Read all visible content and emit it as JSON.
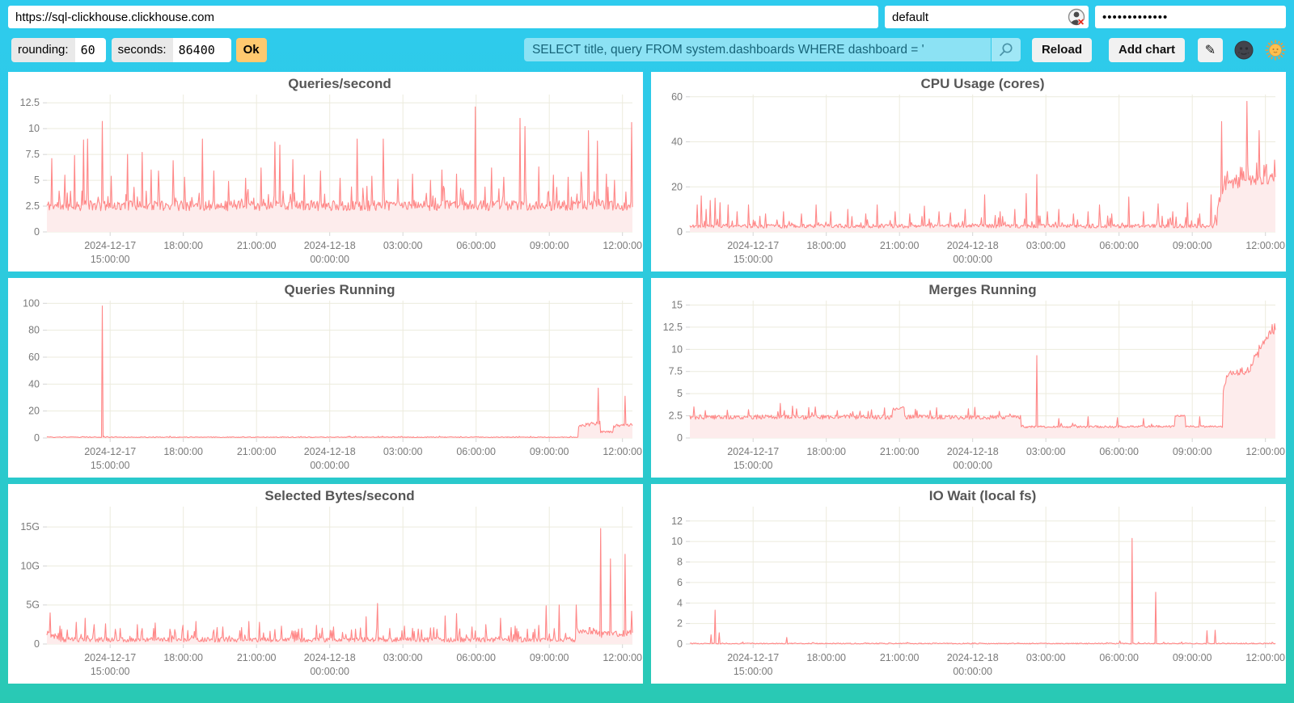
{
  "topbar": {
    "url": "https://sql-clickhouse.clickhouse.com",
    "user": "default",
    "password": "•••••••••••••",
    "rounding_label": "rounding:",
    "rounding_value": "60",
    "seconds_label": "seconds:",
    "seconds_value": "86400",
    "ok": "Ok",
    "query": "SELECT title, query FROM system.dashboards WHERE dashboard = '",
    "reload": "Reload",
    "add_chart": "Add chart",
    "edit": "✎"
  },
  "colors": {
    "background_top": "#2ECBEE",
    "background_bottom": "#29C9B4",
    "line": "#ff8888",
    "fill": "#fdecec",
    "grid": "#ecebdd",
    "axis_text": "#7a7a7a",
    "title_text": "#565656",
    "ok_button": "#FFC96F",
    "query_text": "#17657A"
  },
  "chart_data": {
    "type": "line",
    "x_range": [
      "2024-12-17 ~12:25",
      "2024-12-18 ~12:25"
    ],
    "x_ticks": [
      {
        "f": 0.108,
        "lines": [
          "2024-12-17",
          "15:00:00"
        ]
      },
      {
        "f": 0.233,
        "lines": [
          "18:00:00"
        ]
      },
      {
        "f": 0.358,
        "lines": [
          "21:00:00"
        ]
      },
      {
        "f": 0.483,
        "lines": [
          "2024-12-18",
          "00:00:00"
        ]
      },
      {
        "f": 0.608,
        "lines": [
          "03:00:00"
        ]
      },
      {
        "f": 0.733,
        "lines": [
          "06:00:00"
        ]
      },
      {
        "f": 0.858,
        "lines": [
          "09:00:00"
        ]
      },
      {
        "f": 0.983,
        "lines": [
          "12:00:00"
        ]
      }
    ],
    "charts": [
      {
        "id": "queries-per-second",
        "title": "Queries/second",
        "y_max": 13.3,
        "floor": 1.8,
        "seed": 11,
        "y_ticks": [
          [
            0,
            "0"
          ],
          [
            2.5,
            "2.5"
          ],
          [
            5,
            "5"
          ],
          [
            7.5,
            "7.5"
          ],
          [
            10,
            "10"
          ],
          [
            12.5,
            "12.5"
          ]
        ],
        "segments": [
          [
            0,
            1,
            2.55,
            2.55,
            0.5,
            0.1,
            1.9
          ]
        ],
        "peaks": [
          [
            0.008,
            7.1
          ],
          [
            0.03,
            5.5
          ],
          [
            0.047,
            7.4
          ],
          [
            0.062,
            8.9
          ],
          [
            0.07,
            9.0
          ],
          [
            0.094,
            10.7
          ],
          [
            0.11,
            5.4
          ],
          [
            0.137,
            7.5
          ],
          [
            0.163,
            7.7
          ],
          [
            0.178,
            6.0
          ],
          [
            0.19,
            5.9
          ],
          [
            0.215,
            6.9
          ],
          [
            0.235,
            5.3
          ],
          [
            0.266,
            9.0
          ],
          [
            0.285,
            5.9
          ],
          [
            0.31,
            4.9
          ],
          [
            0.34,
            5.2
          ],
          [
            0.366,
            6.2
          ],
          [
            0.389,
            8.7
          ],
          [
            0.398,
            8.4
          ],
          [
            0.42,
            7.0
          ],
          [
            0.44,
            5.5
          ],
          [
            0.468,
            5.9
          ],
          [
            0.5,
            5.2
          ],
          [
            0.53,
            9.0
          ],
          [
            0.555,
            5.4
          ],
          [
            0.575,
            9.0
          ],
          [
            0.6,
            5.1
          ],
          [
            0.625,
            5.6
          ],
          [
            0.655,
            5.0
          ],
          [
            0.675,
            6.0
          ],
          [
            0.7,
            5.6
          ],
          [
            0.732,
            12.1
          ],
          [
            0.76,
            6.2
          ],
          [
            0.78,
            5.3
          ],
          [
            0.808,
            11.0
          ],
          [
            0.816,
            10.2
          ],
          [
            0.84,
            6.3
          ],
          [
            0.865,
            5.5
          ],
          [
            0.89,
            5.3
          ],
          [
            0.912,
            5.8
          ],
          [
            0.925,
            9.8
          ],
          [
            0.94,
            8.8
          ],
          [
            0.955,
            5.6
          ],
          [
            0.97,
            5.0
          ],
          [
            0.998,
            10.6
          ]
        ]
      },
      {
        "id": "cpu-usage-cores",
        "title": "CPU Usage (cores)",
        "y_max": 61,
        "floor": 1.2,
        "seed": 22,
        "y_ticks": [
          [
            0,
            "0"
          ],
          [
            20,
            "20"
          ],
          [
            40,
            "40"
          ],
          [
            60,
            "60"
          ]
        ],
        "segments": [
          [
            0,
            0.9,
            2.6,
            2.6,
            0.9,
            0.1,
            5
          ],
          [
            0.9,
            0.912,
            10,
            20,
            2,
            0,
            0
          ],
          [
            0.912,
            1,
            21,
            24,
            2.4,
            0.22,
            8
          ]
        ],
        "peaks": [
          [
            0.013,
            12
          ],
          [
            0.02,
            16
          ],
          [
            0.028,
            10
          ],
          [
            0.035,
            14
          ],
          [
            0.043,
            15
          ],
          [
            0.052,
            13
          ],
          [
            0.065,
            12
          ],
          [
            0.08,
            9
          ],
          [
            0.1,
            12
          ],
          [
            0.13,
            8
          ],
          [
            0.16,
            9
          ],
          [
            0.19,
            8
          ],
          [
            0.215,
            12
          ],
          [
            0.24,
            9
          ],
          [
            0.27,
            10
          ],
          [
            0.3,
            8
          ],
          [
            0.32,
            12
          ],
          [
            0.35,
            9
          ],
          [
            0.375,
            8
          ],
          [
            0.4,
            11.5
          ],
          [
            0.425,
            9
          ],
          [
            0.445,
            8.5
          ],
          [
            0.47,
            10
          ],
          [
            0.504,
            16.5
          ],
          [
            0.53,
            9
          ],
          [
            0.555,
            10
          ],
          [
            0.574,
            17
          ],
          [
            0.592,
            25.5
          ],
          [
            0.61,
            9
          ],
          [
            0.63,
            10
          ],
          [
            0.655,
            8
          ],
          [
            0.68,
            9
          ],
          [
            0.7,
            12
          ],
          [
            0.72,
            8
          ],
          [
            0.75,
            15.5
          ],
          [
            0.775,
            9
          ],
          [
            0.8,
            12.5
          ],
          [
            0.825,
            9
          ],
          [
            0.85,
            13
          ],
          [
            0.87,
            8
          ],
          [
            0.89,
            16.5
          ],
          [
            0.908,
            49
          ],
          [
            0.951,
            58
          ],
          [
            0.972,
            45
          ],
          [
            0.985,
            30
          ]
        ]
      },
      {
        "id": "queries-running",
        "title": "Queries Running",
        "y_max": 102,
        "floor": 0.1,
        "seed": 33,
        "y_ticks": [
          [
            0,
            "0"
          ],
          [
            20,
            "20"
          ],
          [
            40,
            "40"
          ],
          [
            60,
            "60"
          ],
          [
            80,
            "80"
          ],
          [
            100,
            "100"
          ]
        ],
        "segments": [
          [
            0,
            0.908,
            0.55,
            0.55,
            0.3,
            0.05,
            0.8
          ],
          [
            0.908,
            0.945,
            9,
            11.5,
            1.4,
            0,
            0
          ],
          [
            0.945,
            0.968,
            4.5,
            4.5,
            0.7,
            0,
            0
          ],
          [
            0.968,
            1,
            9,
            10,
            1.2,
            0,
            0
          ]
        ],
        "peaks": [
          [
            0.095,
            98
          ],
          [
            0.942,
            37
          ],
          [
            0.987,
            31
          ]
        ]
      },
      {
        "id": "merges-running",
        "title": "Merges Running",
        "y_max": 15.5,
        "floor": 0.95,
        "seed": 44,
        "y_ticks": [
          [
            0,
            "0"
          ],
          [
            2.5,
            "2.5"
          ],
          [
            5,
            "5"
          ],
          [
            7.5,
            "7.5"
          ],
          [
            10,
            "10"
          ],
          [
            12.5,
            "12.5"
          ],
          [
            15,
            "15"
          ]
        ],
        "segments": [
          [
            0,
            0.345,
            2.35,
            2.35,
            0.25,
            0.05,
            1.2
          ],
          [
            0.345,
            0.365,
            3.2,
            3.4,
            0.15,
            0,
            0
          ],
          [
            0.365,
            0.565,
            2.35,
            2.35,
            0.25,
            0.05,
            1.2
          ],
          [
            0.565,
            0.828,
            1.25,
            1.3,
            0.12,
            0.05,
            1.0
          ],
          [
            0.828,
            0.846,
            2.5,
            2.5,
            0.08,
            0,
            0
          ],
          [
            0.846,
            0.91,
            1.3,
            1.3,
            0.1,
            0.04,
            0.9
          ],
          [
            0.91,
            0.917,
            5.0,
            6.8,
            0.4,
            0,
            0
          ],
          [
            0.917,
            0.958,
            7.0,
            7.8,
            0.45,
            0,
            0
          ],
          [
            0.958,
            1,
            8.5,
            12.5,
            0.65,
            0,
            0
          ]
        ],
        "peaks": [
          [
            0.1,
            3.2
          ],
          [
            0.155,
            3.9
          ],
          [
            0.175,
            3.6
          ],
          [
            0.252,
            3.1
          ],
          [
            0.333,
            3.4
          ],
          [
            0.41,
            3.1
          ],
          [
            0.475,
            3.3
          ],
          [
            0.528,
            3.0
          ],
          [
            0.592,
            9.3
          ],
          [
            0.63,
            2.2
          ],
          [
            0.68,
            2.4
          ],
          [
            0.73,
            2.3
          ],
          [
            0.775,
            2.2
          ],
          [
            0.87,
            2.4
          ],
          [
            0.995,
            12.8
          ]
        ]
      },
      {
        "id": "selected-bytes-per-second",
        "title": "Selected Bytes/second",
        "y_unit": "G",
        "y_max": 17.6,
        "floor": 0.15,
        "seed": 55,
        "y_ticks": [
          [
            0,
            "0"
          ],
          [
            5,
            "5G"
          ],
          [
            10,
            "10G"
          ],
          [
            15,
            "15G"
          ]
        ],
        "segments": [
          [
            0,
            0.02,
            1.2,
            1.2,
            0.6,
            0,
            0
          ],
          [
            0.02,
            0.905,
            0.55,
            0.55,
            0.3,
            0.12,
            1.6
          ],
          [
            0.905,
            0.94,
            1.8,
            1.6,
            0.5,
            0,
            0
          ],
          [
            0.94,
            1,
            1.2,
            1.4,
            0.4,
            0,
            0
          ]
        ],
        "peaks": [
          [
            0.006,
            4.0
          ],
          [
            0.022,
            2.3
          ],
          [
            0.035,
            1.8
          ],
          [
            0.05,
            2.8
          ],
          [
            0.065,
            3.3
          ],
          [
            0.08,
            2.5
          ],
          [
            0.1,
            2.6
          ],
          [
            0.125,
            2.0
          ],
          [
            0.155,
            2.5
          ],
          [
            0.185,
            2.7
          ],
          [
            0.21,
            1.9
          ],
          [
            0.232,
            2.4
          ],
          [
            0.255,
            2.9
          ],
          [
            0.285,
            1.8
          ],
          [
            0.3,
            2.2
          ],
          [
            0.33,
            1.7
          ],
          [
            0.345,
            2.9
          ],
          [
            0.363,
            2.8
          ],
          [
            0.4,
            2.3
          ],
          [
            0.43,
            1.9
          ],
          [
            0.46,
            2.4
          ],
          [
            0.49,
            2.2
          ],
          [
            0.52,
            1.8
          ],
          [
            0.545,
            3.5
          ],
          [
            0.565,
            5.2
          ],
          [
            0.585,
            2.0
          ],
          [
            0.61,
            2.3
          ],
          [
            0.64,
            1.8
          ],
          [
            0.66,
            2.1
          ],
          [
            0.68,
            3.6
          ],
          [
            0.7,
            3.9
          ],
          [
            0.726,
            2.2
          ],
          [
            0.75,
            2.5
          ],
          [
            0.775,
            3.3
          ],
          [
            0.8,
            2.3
          ],
          [
            0.82,
            1.9
          ],
          [
            0.84,
            2.4
          ],
          [
            0.853,
            4.9
          ],
          [
            0.875,
            5.0
          ],
          [
            0.904,
            5.0
          ],
          [
            0.946,
            14.8
          ],
          [
            0.963,
            10.9
          ],
          [
            0.988,
            11.5
          ],
          [
            0.999,
            4.2
          ]
        ]
      },
      {
        "id": "io-wait-local-fs",
        "title": "IO Wait (local fs)",
        "y_max": 13.4,
        "floor": 0,
        "seed": 66,
        "y_ticks": [
          [
            0,
            "0"
          ],
          [
            2,
            "2"
          ],
          [
            4,
            "4"
          ],
          [
            6,
            "6"
          ],
          [
            8,
            "8"
          ],
          [
            10,
            "10"
          ],
          [
            12,
            "12"
          ]
        ],
        "segments": [
          [
            0,
            1,
            0.05,
            0.05,
            0.05,
            0.02,
            0.15
          ]
        ],
        "peaks": [
          [
            0.036,
            0.9
          ],
          [
            0.043,
            3.3
          ],
          [
            0.05,
            1.1
          ],
          [
            0.09,
            0.2
          ],
          [
            0.165,
            0.65
          ],
          [
            0.21,
            0.15
          ],
          [
            0.3,
            0.12
          ],
          [
            0.42,
            0.1
          ],
          [
            0.5,
            0.08
          ],
          [
            0.56,
            0.12
          ],
          [
            0.6,
            0.1
          ],
          [
            0.735,
            0.3
          ],
          [
            0.755,
            10.3
          ],
          [
            0.796,
            5.05
          ],
          [
            0.84,
            0.2
          ],
          [
            0.883,
            1.3
          ],
          [
            0.897,
            1.35
          ],
          [
            0.95,
            0.12
          ],
          [
            0.995,
            0.18
          ]
        ]
      }
    ]
  }
}
